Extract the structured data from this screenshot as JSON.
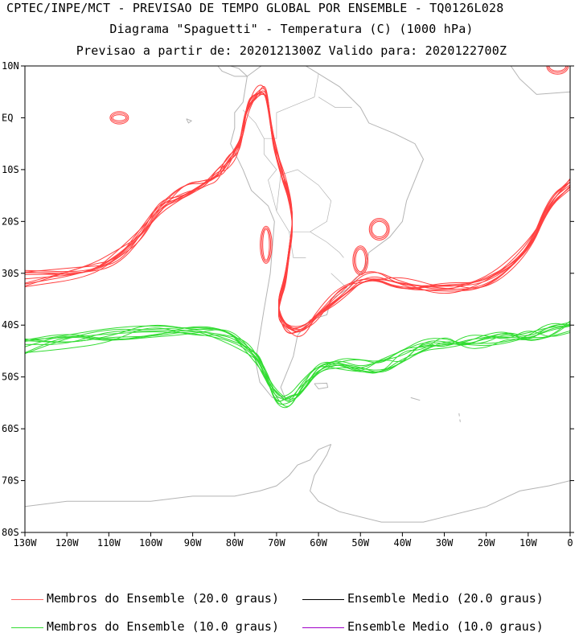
{
  "header": {
    "line1": "CPTEC/INPE/MCT - PREVISAO DE TEMPO GLOBAL POR ENSEMBLE - TQ0126L028",
    "line2": "Diagrama \"Spaguetti\" - Temperatura (C) (1000 hPa)",
    "line3": "Previsao a partir de: 2020121300Z  Valido para: 2020122700Z"
  },
  "map": {
    "lon_range": [
      -130,
      0
    ],
    "lat_range": [
      -80,
      10
    ],
    "lat_labels": [
      "10N",
      "EQ",
      "10S",
      "20S",
      "30S",
      "40S",
      "50S",
      "60S",
      "70S",
      "80S"
    ],
    "lon_labels": [
      "130W",
      "120W",
      "110W",
      "100W",
      "90W",
      "80W",
      "70W",
      "60W",
      "50W",
      "40W",
      "30W",
      "20W",
      "10W",
      "0"
    ],
    "coast_color": "#b4b4b4"
  },
  "legend": [
    {
      "label": "Membros do Ensemble (20.0 graus)",
      "color": "#ff6464"
    },
    {
      "label": "Ensemble Medio (20.0 graus)",
      "color": "#000000"
    },
    {
      "label": "Membros do Ensemble (10.0 graus)",
      "color": "#32dc32"
    },
    {
      "label": "Ensemble Medio (10.0 graus)",
      "color": "#a000c8"
    }
  ],
  "chart_data": {
    "type": "line",
    "series": [
      {
        "name": "Membros do Ensemble (20.0 graus)",
        "color": "#ff4040",
        "members": 10,
        "lon": [
          -130,
          -115,
          -108,
          -102,
          -98,
          -92,
          -87,
          -84,
          -82,
          -79,
          -78,
          -77,
          -75,
          -73,
          -72,
          -71,
          -69,
          -67,
          -66,
          -67,
          -68,
          -70,
          -68,
          -64,
          -60,
          -55,
          -48,
          -40,
          -30,
          -20,
          -10,
          -5,
          0
        ],
        "lat": [
          -31,
          -30,
          -27,
          -22,
          -17,
          -14,
          -12,
          -11,
          -9,
          -6,
          -2,
          2,
          5,
          6,
          3,
          -4,
          -10,
          -15,
          -20,
          -26,
          -32,
          -37,
          -41,
          -42,
          -38,
          -34,
          -30,
          -32,
          -33,
          -32,
          -25,
          -16,
          -13
        ]
      },
      {
        "name": "Membros do Ensemble (10.0 graus)",
        "color": "#32dc32",
        "members": 10,
        "lon": [
          -130,
          -120,
          -110,
          -100,
          -90,
          -82,
          -77,
          -74,
          -72,
          -70,
          -67,
          -64,
          -60,
          -55,
          -50,
          -45,
          -40,
          -35,
          -30,
          -25,
          -20,
          -15,
          -10,
          -5,
          0
        ],
        "lat": [
          -44,
          -43,
          -42,
          -41,
          -41,
          -42,
          -44,
          -47,
          -51,
          -54,
          -55,
          -52,
          -48,
          -47,
          -48,
          -48,
          -46,
          -44,
          -43,
          -43,
          -43,
          -42,
          -42,
          -41,
          -40
        ]
      }
    ]
  }
}
